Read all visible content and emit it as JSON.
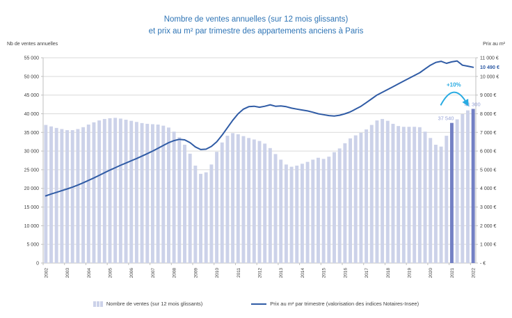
{
  "title": {
    "line1": "Nombre de ventes annuelles  (sur 12 mois glissants)",
    "line2": "et prix au m² par trimestre des appartements anciens à Paris"
  },
  "axes": {
    "left_label": "Nb de ventes annuelles",
    "right_label": "Prix au m²",
    "left_ticks": [
      "55 000",
      "50 000",
      "45 000",
      "40 000",
      "35 000",
      "30 000",
      "25 000",
      "20 000",
      "15 000",
      "10 000",
      "5 000",
      "0"
    ],
    "right_ticks": [
      "11 000 €",
      "10 000 €",
      "9 000 €",
      "8 000 €",
      "7 000 €",
      "6 000 €",
      "5 000 €",
      "4 000 €",
      "3 000 €",
      "2 000 €",
      "1 000 €",
      "- €"
    ],
    "years": [
      "2002",
      "2003",
      "2004",
      "2005",
      "2006",
      "2007",
      "2008",
      "2009",
      "2010",
      "2011",
      "2012",
      "2013",
      "2014",
      "2015",
      "2016",
      "2017",
      "2018",
      "2019",
      "2020",
      "2021",
      "2022"
    ]
  },
  "annotations": {
    "bar_2021_label": "37 540",
    "bar_2022_label": "41 300",
    "price_last_label": "10 490 €",
    "pct_label": "+10%"
  },
  "legend": {
    "bars": "Nombre de ventes (sur 12 mois glissants)",
    "line": "Prix au m² par trimestre (valorisation des indices Notaires-Insee)"
  },
  "colors": {
    "title": "#2E74B5",
    "bar_light": "#CCD2E9",
    "bar_dark": "#7380C4",
    "line": "#2F5BA5",
    "grid": "#D9D9D9",
    "axis": "#BFBFBF",
    "tick_text": "#404040",
    "bar_label": "#94A0D6",
    "price_label": "#2F5BA5",
    "accent_cyan": "#29ABE2"
  },
  "chart_data": {
    "type": "bar+line combo, quarterly 2002Q1-2022Q1",
    "x_year_labels": [
      "2002",
      "2003",
      "2004",
      "2005",
      "2006",
      "2007",
      "2008",
      "2009",
      "2010",
      "2011",
      "2012",
      "2013",
      "2014",
      "2015",
      "2016",
      "2017",
      "2018",
      "2019",
      "2020",
      "2021",
      "2022"
    ],
    "x_label_every_n_bars": 4,
    "left_ylim": [
      0,
      55000
    ],
    "right_ylim": [
      0,
      11000
    ],
    "grid": "horizontal only",
    "legend_position": "bottom center",
    "highlight_bar_indices": [
      76,
      80
    ],
    "series": [
      {
        "name": "Nombre de ventes (sur 12 mois glissants)",
        "type": "bar",
        "axis": "left",
        "values": [
          37000,
          36600,
          36200,
          35900,
          35600,
          35600,
          35900,
          36400,
          37100,
          37700,
          38200,
          38600,
          38800,
          38900,
          38700,
          38400,
          38100,
          37800,
          37500,
          37300,
          37200,
          37100,
          36800,
          36300,
          35200,
          33700,
          31700,
          29300,
          26100,
          23900,
          24300,
          26400,
          29800,
          32300,
          34100,
          34800,
          34500,
          34000,
          33500,
          33100,
          32700,
          32000,
          30800,
          29200,
          27700,
          26400,
          25800,
          26100,
          26600,
          27100,
          27700,
          28200,
          27900,
          28500,
          29700,
          30700,
          32100,
          33400,
          34200,
          34900,
          35800,
          37000,
          38200,
          38600,
          38100,
          37300,
          36700,
          36500,
          36500,
          36500,
          36400,
          35200,
          33500,
          31700,
          31200,
          34100,
          37540,
          38500,
          39900,
          40900,
          41300
        ]
      },
      {
        "name": "Prix au m² par trimestre (valorisation des indices Notaires-Insee)",
        "type": "line",
        "axis": "right",
        "values": [
          3600,
          3700,
          3790,
          3880,
          3970,
          4070,
          4180,
          4300,
          4430,
          4560,
          4700,
          4840,
          4980,
          5110,
          5240,
          5360,
          5480,
          5600,
          5730,
          5860,
          6000,
          6150,
          6300,
          6450,
          6560,
          6630,
          6600,
          6450,
          6220,
          6080,
          6100,
          6250,
          6500,
          6850,
          7250,
          7650,
          8000,
          8250,
          8380,
          8400,
          8350,
          8400,
          8480,
          8400,
          8420,
          8380,
          8300,
          8250,
          8200,
          8150,
          8080,
          8000,
          7950,
          7900,
          7880,
          7920,
          8000,
          8100,
          8250,
          8400,
          8600,
          8800,
          9000,
          9150,
          9300,
          9450,
          9600,
          9750,
          9900,
          10050,
          10200,
          10400,
          10600,
          10750,
          10810,
          10700,
          10780,
          10830,
          10600,
          10550,
          10490
        ]
      }
    ],
    "callouts": {
      "sales_2021": 37540,
      "sales_2022": 41300,
      "sales_change_pct": "+10%",
      "price_last": 10490
    }
  }
}
